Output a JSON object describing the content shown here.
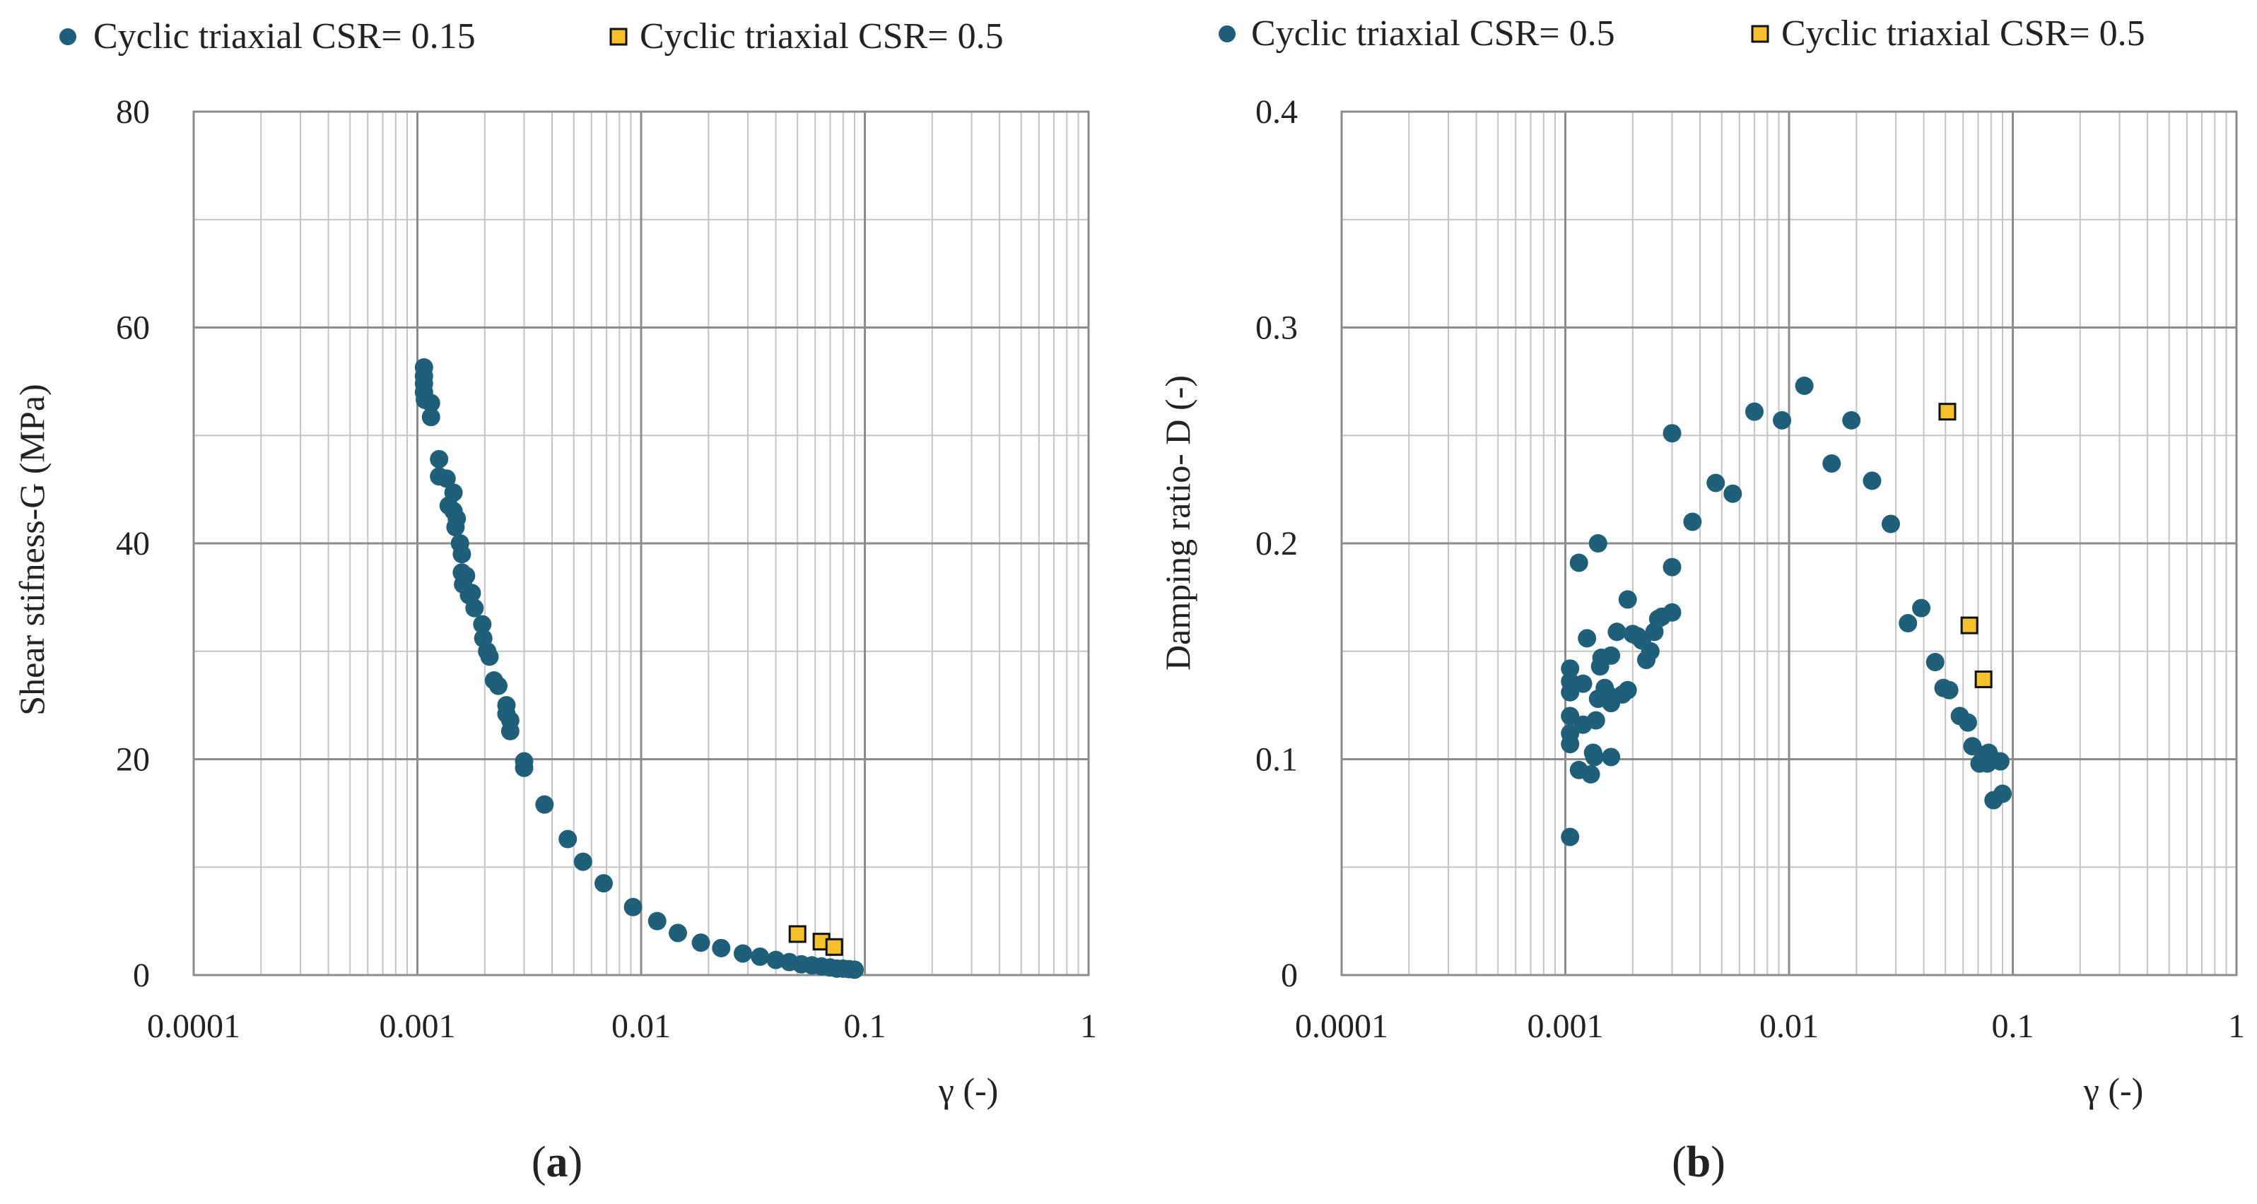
{
  "colors": {
    "series_circle": "#1f5f7a",
    "series_square": "#f5c02a",
    "square_edge": "#111111",
    "major_grid": "#8c8c8c",
    "minor_grid": "#c4c4c4"
  },
  "chart_data": [
    {
      "type": "scatter",
      "panel_label_prefix": "(",
      "panel_letter": "a",
      "panel_label_suffix": ")",
      "xlabel": "γ (-)",
      "ylabel": "Shear stifness-G (MPa)",
      "xscale": "log",
      "xlim": [
        0.0001,
        1
      ],
      "ylim": [
        0,
        80
      ],
      "xticks": [
        "0.0001",
        "0.001",
        "0.01",
        "0.1",
        "1"
      ],
      "yticks": [
        "0",
        "20",
        "40",
        "60",
        "80"
      ],
      "grid": true,
      "legend_position": "top",
      "series": [
        {
          "name": "Cyclic triaxial CSR= 0.15",
          "marker": "circle",
          "points": [
            [
              0.00107,
              56.3
            ],
            [
              0.00107,
              55.5
            ],
            [
              0.00107,
              54.8
            ],
            [
              0.00107,
              54.0
            ],
            [
              0.00108,
              53.3
            ],
            [
              0.00115,
              53.0
            ],
            [
              0.00115,
              51.7
            ],
            [
              0.00125,
              47.8
            ],
            [
              0.00125,
              46.2
            ],
            [
              0.00135,
              46.0
            ],
            [
              0.00138,
              43.5
            ],
            [
              0.00145,
              44.7
            ],
            [
              0.00145,
              43.0
            ],
            [
              0.00148,
              41.5
            ],
            [
              0.0015,
              42.3
            ],
            [
              0.00155,
              40.0
            ],
            [
              0.00158,
              39.0
            ],
            [
              0.00158,
              37.3
            ],
            [
              0.0016,
              36.2
            ],
            [
              0.00165,
              37.0
            ],
            [
              0.0017,
              35.2
            ],
            [
              0.00175,
              35.4
            ],
            [
              0.0018,
              34.0
            ],
            [
              0.00195,
              32.5
            ],
            [
              0.00197,
              31.2
            ],
            [
              0.00205,
              30.0
            ],
            [
              0.0021,
              29.5
            ],
            [
              0.0022,
              27.3
            ],
            [
              0.0023,
              26.8
            ],
            [
              0.0025,
              25.0
            ],
            [
              0.0025,
              24.2
            ],
            [
              0.0026,
              23.6
            ],
            [
              0.0026,
              22.6
            ],
            [
              0.003,
              19.8
            ],
            [
              0.003,
              19.2
            ],
            [
              0.0037,
              15.8
            ],
            [
              0.0047,
              12.6
            ],
            [
              0.0055,
              10.5
            ],
            [
              0.0068,
              8.5
            ],
            [
              0.0092,
              6.3
            ],
            [
              0.0118,
              5.0
            ],
            [
              0.0146,
              3.9
            ],
            [
              0.0185,
              3.0
            ],
            [
              0.0228,
              2.5
            ],
            [
              0.0285,
              2.0
            ],
            [
              0.034,
              1.7
            ],
            [
              0.04,
              1.4
            ],
            [
              0.046,
              1.2
            ],
            [
              0.052,
              1.0
            ],
            [
              0.058,
              0.9
            ],
            [
              0.064,
              0.8
            ],
            [
              0.07,
              0.7
            ],
            [
              0.075,
              0.6
            ],
            [
              0.08,
              0.6
            ],
            [
              0.085,
              0.55
            ],
            [
              0.09,
              0.5
            ]
          ]
        },
        {
          "name": "Cyclic triaxial CSR= 0.5",
          "marker": "square",
          "points": [
            [
              0.05,
              3.8
            ],
            [
              0.064,
              3.1
            ],
            [
              0.073,
              2.6
            ]
          ]
        }
      ]
    },
    {
      "type": "scatter",
      "panel_label_prefix": "(",
      "panel_letter": "b",
      "panel_label_suffix": ")",
      "xlabel": "γ (-)",
      "ylabel": "Damping ratio- D (-)",
      "xscale": "log",
      "xlim": [
        0.0001,
        1
      ],
      "ylim": [
        0,
        0.4
      ],
      "xticks": [
        "0.0001",
        "0.001",
        "0.01",
        "0.1",
        "1"
      ],
      "yticks": [
        "0",
        "0.1",
        "0.2",
        "0.3",
        "0.4"
      ],
      "grid": true,
      "legend_position": "top",
      "series": [
        {
          "name": "Cyclic triaxial CSR= 0.5",
          "marker": "circle",
          "points": [
            [
              0.00105,
              0.064
            ],
            [
              0.00105,
              0.107
            ],
            [
              0.00105,
              0.112
            ],
            [
              0.00105,
              0.12
            ],
            [
              0.00105,
              0.131
            ],
            [
              0.00105,
              0.136
            ],
            [
              0.00105,
              0.142
            ],
            [
              0.00115,
              0.191
            ],
            [
              0.00115,
              0.095
            ],
            [
              0.0012,
              0.116
            ],
            [
              0.0012,
              0.135
            ],
            [
              0.00125,
              0.156
            ],
            [
              0.0013,
              0.093
            ],
            [
              0.00133,
              0.103
            ],
            [
              0.00135,
              0.101
            ],
            [
              0.00137,
              0.118
            ],
            [
              0.0014,
              0.2
            ],
            [
              0.0014,
              0.128
            ],
            [
              0.00143,
              0.143
            ],
            [
              0.00145,
              0.147
            ],
            [
              0.0015,
              0.133
            ],
            [
              0.00155,
              0.13
            ],
            [
              0.0016,
              0.101
            ],
            [
              0.0016,
              0.148
            ],
            [
              0.0016,
              0.126
            ],
            [
              0.0017,
              0.159
            ],
            [
              0.0018,
              0.13
            ],
            [
              0.0019,
              0.132
            ],
            [
              0.0019,
              0.174
            ],
            [
              0.002,
              0.158
            ],
            [
              0.0021,
              0.157
            ],
            [
              0.0022,
              0.155
            ],
            [
              0.0023,
              0.146
            ],
            [
              0.0024,
              0.15
            ],
            [
              0.0025,
              0.159
            ],
            [
              0.0026,
              0.165
            ],
            [
              0.0027,
              0.166
            ],
            [
              0.003,
              0.251
            ],
            [
              0.003,
              0.189
            ],
            [
              0.003,
              0.168
            ],
            [
              0.0037,
              0.21
            ],
            [
              0.0047,
              0.228
            ],
            [
              0.0056,
              0.223
            ],
            [
              0.007,
              0.261
            ],
            [
              0.0093,
              0.257
            ],
            [
              0.0117,
              0.273
            ],
            [
              0.0155,
              0.237
            ],
            [
              0.019,
              0.257
            ],
            [
              0.0235,
              0.229
            ],
            [
              0.0285,
              0.209
            ],
            [
              0.034,
              0.163
            ],
            [
              0.039,
              0.17
            ],
            [
              0.045,
              0.145
            ],
            [
              0.049,
              0.133
            ],
            [
              0.052,
              0.132
            ],
            [
              0.058,
              0.12
            ],
            [
              0.063,
              0.117
            ],
            [
              0.066,
              0.106
            ],
            [
              0.071,
              0.098
            ],
            [
              0.074,
              0.102
            ],
            [
              0.077,
              0.098
            ],
            [
              0.078,
              0.103
            ],
            [
              0.081,
              0.1
            ],
            [
              0.082,
              0.081
            ],
            [
              0.088,
              0.099
            ],
            [
              0.09,
              0.084
            ]
          ]
        },
        {
          "name": "Cyclic triaxial CSR= 0.5",
          "marker": "square",
          "points": [
            [
              0.051,
              0.261
            ],
            [
              0.064,
              0.162
            ],
            [
              0.074,
              0.137
            ]
          ]
        }
      ]
    }
  ]
}
